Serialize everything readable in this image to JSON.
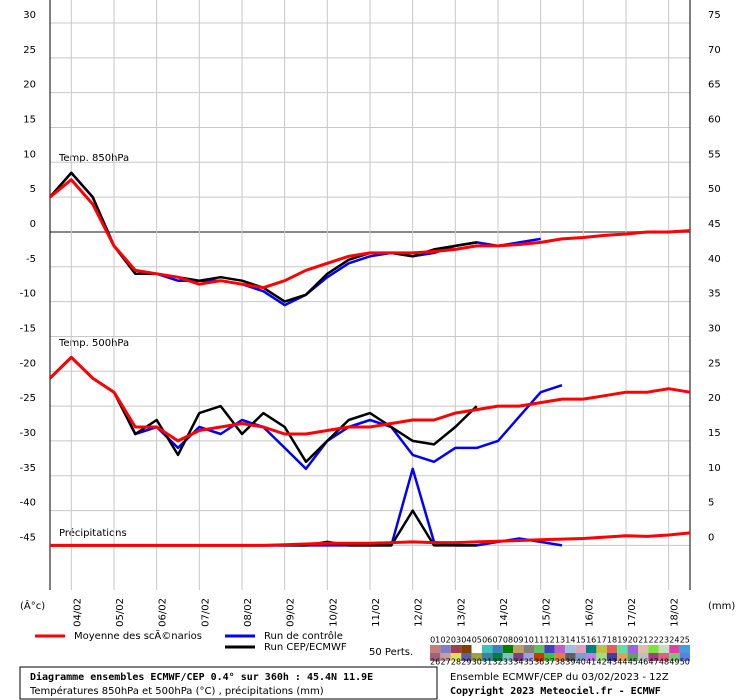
{
  "chart_data": {
    "type": "line",
    "labels": {
      "t850": "Temp. 850hPa",
      "t500": "Temp. 500hPa",
      "precip": "Précipitations",
      "y_unit": "(Â°c)",
      "y2_unit": "(mm)"
    },
    "xlim": [
      3.5,
      18.5
    ],
    "xticks": [
      {
        "value": 4,
        "label": "04/02"
      },
      {
        "value": 5,
        "label": "05/02"
      },
      {
        "value": 6,
        "label": "06/02"
      },
      {
        "value": 7,
        "label": "07/02"
      },
      {
        "value": 8,
        "label": "08/02"
      },
      {
        "value": 9,
        "label": "09/02"
      },
      {
        "value": 10,
        "label": "10/02"
      },
      {
        "value": 11,
        "label": "11/02"
      },
      {
        "value": 12,
        "label": "12/02"
      },
      {
        "value": 13,
        "label": "13/02"
      },
      {
        "value": 14,
        "label": "14/02"
      },
      {
        "value": 15,
        "label": "15/02"
      },
      {
        "value": 16,
        "label": "16/02"
      },
      {
        "value": 17,
        "label": "17/02"
      },
      {
        "value": 18,
        "label": "18/02"
      }
    ],
    "ylim": [
      -51.4,
      33.3
    ],
    "yticks": [
      30,
      25,
      20,
      15,
      10,
      5,
      0,
      -5,
      -10,
      -15,
      -20,
      -25,
      -30,
      -35,
      -40,
      -45
    ],
    "y2lim": [
      -6.4,
      78.3
    ],
    "y2ticks": [
      75,
      70,
      65,
      60,
      55,
      50,
      45,
      40,
      35,
      30,
      25,
      20,
      15,
      10,
      5,
      0
    ],
    "grid": true,
    "x": [
      3.5,
      4,
      4.5,
      5,
      5.5,
      6,
      6.5,
      7,
      7.5,
      8,
      8.5,
      9,
      9.5,
      10,
      10.5,
      11,
      11.5,
      12,
      12.5,
      13,
      13.5,
      14,
      14.5,
      15,
      15.5,
      16,
      16.5,
      17,
      17.5,
      18,
      18.5
    ],
    "series": [
      {
        "name": "Moyenne des scÃ©narios",
        "color": "#ff0000",
        "t850": [
          5,
          7.5,
          4,
          -2,
          -5.5,
          -6,
          -6.5,
          -7.5,
          -7,
          -7.5,
          -8,
          -7,
          -5.5,
          -4.5,
          -3.5,
          -3,
          -3,
          -3,
          -2.8,
          -2.5,
          -2,
          -2,
          -1.8,
          -1.5,
          -1,
          -0.8,
          -0.5,
          -0.3,
          0,
          0,
          0.2
        ],
        "t500": [
          -21,
          -18,
          -21,
          -23,
          -28,
          -28,
          -30,
          -28.5,
          -28,
          -27.5,
          -28,
          -29,
          -29,
          -28.5,
          -28,
          -28,
          -27.5,
          -27,
          -27,
          -26,
          -25.5,
          -25,
          -25,
          -24.5,
          -24,
          -24,
          -23.5,
          -23,
          -23,
          -22.5,
          -23
        ],
        "precip": [
          0,
          0,
          0,
          0,
          0,
          0,
          0,
          0,
          0,
          0,
          0,
          0.1,
          0.2,
          0.3,
          0.3,
          0.3,
          0.4,
          0.5,
          0.4,
          0.4,
          0.5,
          0.6,
          0.7,
          0.8,
          0.9,
          1,
          1.2,
          1.4,
          1.3,
          1.5,
          1.8
        ]
      },
      {
        "name": "Run de contrôle",
        "color": "#0000ff",
        "t850": [
          5,
          8.5,
          5,
          -2,
          -6,
          -6,
          -7,
          -7,
          -7,
          -7.5,
          -8.5,
          -10.5,
          -9,
          -6.5,
          -4.5,
          -3.5,
          -3,
          -3.5,
          -3,
          -2,
          -1.5,
          -2,
          -1.5,
          -1,
          null,
          null,
          null,
          null,
          null,
          null,
          null
        ],
        "t500": [
          -21,
          -18,
          -21,
          -23,
          -29,
          -28,
          -31,
          -28,
          -29,
          -27,
          -28,
          -31,
          -34,
          -30,
          -28,
          -27,
          -28,
          -32,
          -33,
          -31,
          -31,
          -30,
          -26.5,
          -23,
          -22,
          null,
          null,
          null,
          null,
          null,
          null
        ],
        "precip": [
          0,
          0,
          0,
          0,
          0,
          0,
          0,
          0,
          0,
          0,
          0,
          0,
          0,
          0,
          0,
          0,
          0,
          11,
          0.5,
          0,
          0,
          0.5,
          1,
          0.5,
          0,
          null,
          null,
          null,
          null,
          null,
          null
        ]
      },
      {
        "name": "Run CEP/ECMWF",
        "color": "#000000",
        "t850": [
          5,
          8.5,
          5,
          -2,
          -6,
          -6,
          -6.5,
          -7,
          -6.5,
          -7,
          -8,
          -10,
          -9,
          -6,
          -4,
          -3,
          -3,
          -3.5,
          -2.5,
          -2,
          -1.5,
          null,
          null,
          null,
          null,
          null,
          null,
          null,
          null,
          null,
          null
        ],
        "t500": [
          -21,
          -18,
          -21,
          -23,
          -29,
          -27,
          -32,
          -26,
          -25,
          -29,
          -26,
          -28,
          -33,
          -30,
          -27,
          -26,
          -28,
          -30,
          -30.5,
          -28,
          -25,
          null,
          null,
          null,
          null,
          null,
          null,
          null,
          null,
          null,
          null
        ],
        "precip": [
          0,
          0,
          0,
          0,
          0,
          0,
          0,
          0,
          0,
          0,
          0,
          0,
          0,
          0.5,
          0,
          0,
          0,
          5,
          0,
          0,
          0,
          null,
          null,
          null,
          null,
          null,
          null,
          null,
          null,
          null,
          null
        ]
      }
    ],
    "perturbations": {
      "label": "50 Perts.",
      "members": [
        {
          "name": "01",
          "color": "#c08080"
        },
        {
          "name": "02",
          "color": "#8080c0"
        },
        {
          "name": "03",
          "color": "#a04040"
        },
        {
          "name": "04",
          "color": "#804000"
        },
        {
          "name": "05",
          "color": "#ffffff"
        },
        {
          "name": "06",
          "color": "#40c0c0"
        },
        {
          "name": "07",
          "color": "#4080c0"
        },
        {
          "name": "08",
          "color": "#008000"
        },
        {
          "name": "09",
          "color": "#c0a060"
        },
        {
          "name": "10",
          "color": "#808080"
        },
        {
          "name": "11",
          "color": "#60c060"
        },
        {
          "name": "12",
          "color": "#4040c0"
        },
        {
          "name": "13",
          "color": "#c060c0"
        },
        {
          "name": "14",
          "color": "#a0c0e0"
        },
        {
          "name": "15",
          "color": "#e0a0c0"
        },
        {
          "name": "16",
          "color": "#008080"
        },
        {
          "name": "17",
          "color": "#c0c040"
        },
        {
          "name": "18",
          "color": "#e06060"
        },
        {
          "name": "19",
          "color": "#60e0a0"
        },
        {
          "name": "20",
          "color": "#a060e0"
        },
        {
          "name": "21",
          "color": "#e0c0a0"
        },
        {
          "name": "22",
          "color": "#80e040"
        },
        {
          "name": "23",
          "color": "#c0e0c0"
        },
        {
          "name": "24",
          "color": "#e040a0"
        },
        {
          "name": "25",
          "color": "#40a0e0"
        },
        {
          "name": "26",
          "color": "#a06080"
        },
        {
          "name": "27",
          "color": "#c0a0a0"
        },
        {
          "name": "28",
          "color": "#e0e060"
        },
        {
          "name": "29",
          "color": "#6060a0"
        },
        {
          "name": "30",
          "color": "#a0a040"
        },
        {
          "name": "31",
          "color": "#4080a0"
        },
        {
          "name": "32",
          "color": "#008040"
        },
        {
          "name": "33",
          "color": "#80c0c0"
        },
        {
          "name": "34",
          "color": "#804080"
        },
        {
          "name": "35",
          "color": "#a0a0e0"
        },
        {
          "name": "36",
          "color": "#c04000"
        },
        {
          "name": "37",
          "color": "#40c040"
        },
        {
          "name": "38",
          "color": "#e08040"
        },
        {
          "name": "39",
          "color": "#606060"
        },
        {
          "name": "40",
          "color": "#80a0c0"
        },
        {
          "name": "41",
          "color": "#c080e0"
        },
        {
          "name": "42",
          "color": "#a0e080"
        },
        {
          "name": "43",
          "color": "#4040a0"
        },
        {
          "name": "44",
          "color": "#e0a060"
        },
        {
          "name": "45",
          "color": "#60a060"
        },
        {
          "name": "46",
          "color": "#c0c0c0"
        },
        {
          "name": "47",
          "color": "#a04080"
        },
        {
          "name": "48",
          "color": "#e06080"
        },
        {
          "name": "49",
          "color": "#80c080"
        },
        {
          "name": "50",
          "color": "#6080e0"
        }
      ]
    }
  },
  "footer": {
    "title": "Diagramme ensembles ECMWF/CEP 0.4° sur 360h : 45.4N 11.9E",
    "subtitle": "Températures 850hPa et 500hPa (°C) , précipitations (mm)",
    "run": "Ensemble ECMWF/CEP du 03/02/2023 - 12Z",
    "copyright": "Copyright 2023 Meteociel.fr - ECMWF"
  }
}
